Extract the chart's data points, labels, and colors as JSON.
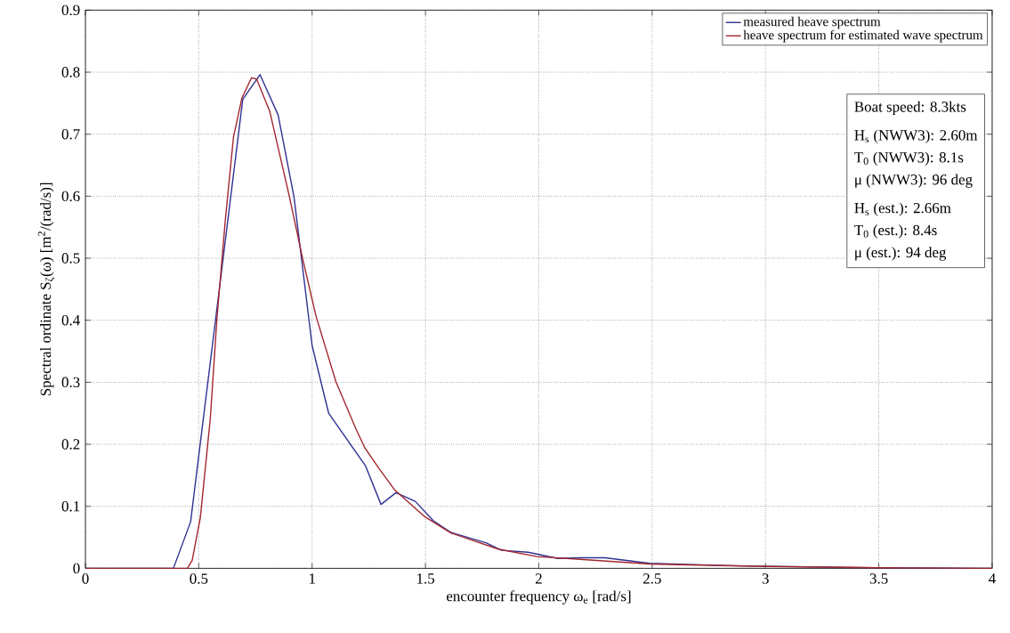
{
  "chart_data": {
    "type": "line",
    "xlabel": "encounter frequency ω$_{e}$  [rad/s]",
    "ylabel": "Spectral ordinate S$_{ζ}$(ω)  [m$^{2}$/(rad/s)]",
    "xlim": [
      0,
      4
    ],
    "ylim": [
      0,
      0.9
    ],
    "xticks": [
      0,
      0.5,
      1,
      1.5,
      2,
      2.5,
      3,
      3.5,
      4
    ],
    "yticks": [
      0,
      0.1,
      0.2,
      0.3,
      0.4,
      0.5,
      0.6,
      0.7,
      0.8,
      0.9
    ],
    "grid": true,
    "legend": "top right",
    "marker": "none",
    "line_style": "solid",
    "series": [
      {
        "name": "measured heave spectrum",
        "color": "#2e3192",
        "x": [
          0,
          0.388,
          0.464,
          0.694,
          0.77,
          0.85,
          0.92,
          1.0,
          1.073,
          1.236,
          1.304,
          1.37,
          1.455,
          1.534,
          1.612,
          1.769,
          1.835,
          1.952,
          2.018,
          2.083,
          2.188,
          2.292,
          2.489,
          2.89,
          3.48,
          4
        ],
        "values": [
          0,
          0,
          0.075,
          0.756,
          0.796,
          0.731,
          0.599,
          0.359,
          0.25,
          0.165,
          0.103,
          0.122,
          0.108,
          0.077,
          0.058,
          0.041,
          0.029,
          0.026,
          0.021,
          0.016,
          0.017,
          0.017,
          0.008,
          0.004,
          0.001,
          0
        ]
      },
      {
        "name": "heave spectrum for estimated wave spectrum",
        "color": "#a3262e",
        "x": [
          0,
          0.45,
          0.471,
          0.507,
          0.551,
          0.58,
          0.617,
          0.653,
          0.69,
          0.733,
          0.755,
          0.813,
          0.9,
          0.959,
          1.017,
          1.105,
          1.192,
          1.233,
          1.297,
          1.363,
          1.494,
          1.612,
          1.821,
          1.991,
          2.24,
          2.489,
          3.0,
          3.5,
          4
        ],
        "values": [
          0,
          0,
          0.013,
          0.082,
          0.242,
          0.402,
          0.561,
          0.695,
          0.758,
          0.791,
          0.789,
          0.737,
          0.599,
          0.498,
          0.407,
          0.301,
          0.226,
          0.194,
          0.16,
          0.127,
          0.084,
          0.057,
          0.031,
          0.019,
          0.013,
          0.007,
          0.003,
          0.001,
          0
        ]
      }
    ],
    "annotations": [
      "Boat speed: 8.3kts",
      "H$_{s}$ (NWW3): 2.60m",
      "T$_{0}$ (NWW3): 8.1s",
      "μ (NWW3): 96 deg",
      "H$_{s}$ (est.): 2.66m",
      "T$_{0}$ (est.): 8.4s",
      "μ (est.): 94 deg"
    ]
  }
}
